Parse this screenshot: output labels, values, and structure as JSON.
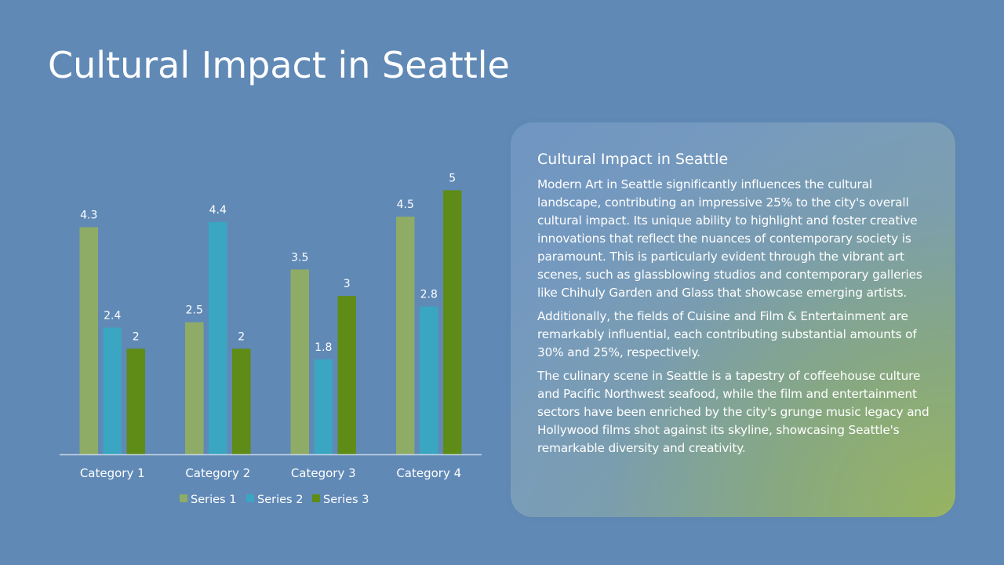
{
  "slide": {
    "title": "Cultural Impact in Seattle"
  },
  "panel": {
    "heading": "Cultural Impact in Seattle",
    "paragraphs": [
      "Modern Art in Seattle significantly influences the cultural landscape, contributing an impressive 25% to the city's overall cultural impact. Its unique ability to highlight and foster creative innovations that reflect the nuances of contemporary society is paramount. This is particularly evident through the vibrant art scenes, such as glassblowing studios and contemporary galleries like Chihuly Garden and Glass that showcase emerging artists.",
      "Additionally, the fields of Cuisine and Film & Entertainment are remarkably influential, each contributing substantial amounts of 30% and 25%, respectively.",
      "The culinary scene in Seattle is a tapestry of coffeehouse culture and Pacific Northwest seafood, while the film and entertainment sectors have been enriched by the city's grunge music legacy and Hollywood films shot against its skyline, showcasing Seattle's remarkable diversity and creativity."
    ]
  },
  "chart_data": {
    "type": "bar",
    "categories": [
      "Category 1",
      "Category 2",
      "Category 3",
      "Category 4"
    ],
    "series": [
      {
        "name": "Series 1",
        "values": [
          4.3,
          2.5,
          3.5,
          4.5
        ],
        "color": "#8fac66"
      },
      {
        "name": "Series 2",
        "values": [
          2.4,
          4.4,
          1.8,
          2.8
        ],
        "color": "#3aa6c2"
      },
      {
        "name": "Series 3",
        "values": [
          2,
          2,
          3,
          5
        ],
        "color": "#5e8c17"
      }
    ],
    "ylim": [
      0,
      5.2
    ],
    "data_labels": true,
    "legend": "bottom",
    "grid": false,
    "axis_color": "#c9d6e6",
    "label_color": "#ffffff"
  }
}
